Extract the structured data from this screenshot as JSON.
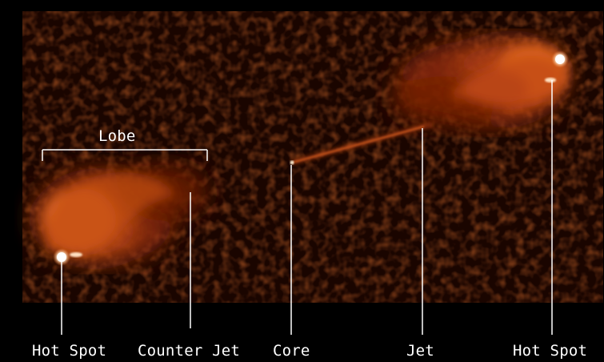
{
  "image": {
    "labels": {
      "lobe": "Lobe",
      "hot_spot_left": "Hot Spot",
      "counter_jet": "Counter Jet",
      "core": "Core",
      "jet": "Jet",
      "hot_spot_right": "Hot Spot"
    },
    "colors": {
      "background": "#000000",
      "sky_dark": "#1a0500",
      "emission_mid": "#b03a10",
      "emission_bright": "#f07a30",
      "hot_spot": "#ffffff",
      "annotation": "#ffffff"
    }
  }
}
